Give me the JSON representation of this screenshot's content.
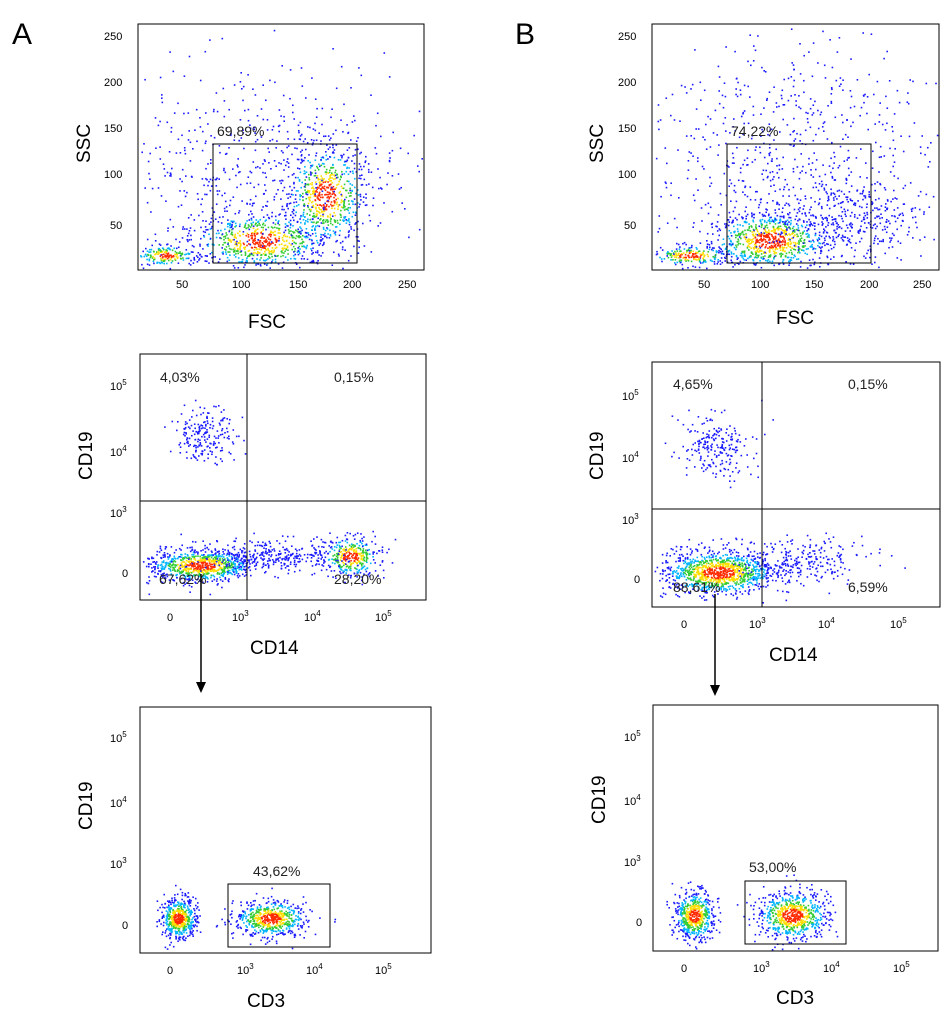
{
  "panels": [
    {
      "letter": "A",
      "plots": [
        {
          "kind": "scatter-density",
          "xscale": "linear",
          "yscale": "linear",
          "xlabel": "FSC",
          "ylabel": "SSC",
          "xlim": [
            0,
            262
          ],
          "ylim": [
            0,
            262
          ],
          "xticks": [
            "50",
            "100",
            "150",
            "200",
            "250"
          ],
          "yticks": [
            "50",
            "100",
            "150",
            "200",
            "250"
          ],
          "gates": [
            {
              "type": "rect",
              "x": [
                68,
                200
              ],
              "y": [
                10,
                135
              ],
              "label": "69,89%"
            }
          ]
        },
        {
          "kind": "scatter-density",
          "xscale": "biexponential",
          "yscale": "biexponential",
          "xlabel": "CD14",
          "ylabel": "CD19",
          "xticks": [
            "0",
            "10^3",
            "10^4",
            "10^5"
          ],
          "yticks": [
            "0",
            "10^3",
            "10^4",
            "10^5"
          ],
          "quadrant_lines": {
            "x": "10^3",
            "y": "10^3"
          },
          "quadrants": {
            "upper_left": "4,03%",
            "upper_right": "0,15%",
            "lower_left": "67,62%",
            "lower_right": "28,20%"
          },
          "arrow_from": "lower_left"
        },
        {
          "kind": "scatter-density",
          "xscale": "biexponential",
          "yscale": "biexponential",
          "xlabel": "CD3",
          "ylabel": "CD19",
          "xticks": [
            "0",
            "10^3",
            "10^4",
            "10^5"
          ],
          "yticks": [
            "0",
            "10^3",
            "10^4",
            "10^5"
          ],
          "gates": [
            {
              "type": "rect",
              "label": "43,62%"
            }
          ]
        }
      ]
    },
    {
      "letter": "B",
      "plots": [
        {
          "kind": "scatter-density",
          "xscale": "linear",
          "yscale": "linear",
          "xlabel": "FSC",
          "ylabel": "SSC",
          "xlim": [
            0,
            262
          ],
          "ylim": [
            0,
            262
          ],
          "xticks": [
            "50",
            "100",
            "150",
            "200",
            "250"
          ],
          "yticks": [
            "50",
            "100",
            "150",
            "200",
            "250"
          ],
          "gates": [
            {
              "type": "rect",
              "x": [
                68,
                200
              ],
              "y": [
                10,
                135
              ],
              "label": "74,22%"
            }
          ]
        },
        {
          "kind": "scatter-density",
          "xscale": "biexponential",
          "yscale": "biexponential",
          "xlabel": "CD14",
          "ylabel": "CD19",
          "xticks": [
            "0",
            "10^3",
            "10^4",
            "10^5"
          ],
          "yticks": [
            "0",
            "10^3",
            "10^4",
            "10^5"
          ],
          "quadrant_lines": {
            "x": "10^3",
            "y": "10^3"
          },
          "quadrants": {
            "upper_left": "4,65%",
            "upper_right": "0,15%",
            "lower_left": "88,61%",
            "lower_right": "6,59%"
          },
          "arrow_from": "lower_left"
        },
        {
          "kind": "scatter-density",
          "xscale": "biexponential",
          "yscale": "biexponential",
          "xlabel": "CD3",
          "ylabel": "CD19",
          "xticks": [
            "0",
            "10^3",
            "10^4",
            "10^5"
          ],
          "yticks": [
            "0",
            "10^3",
            "10^4",
            "10^5"
          ],
          "gates": [
            {
              "type": "rect",
              "label": "53,00%"
            }
          ]
        }
      ]
    }
  ],
  "chart_data": [
    {
      "type": "scatter",
      "panel": "A",
      "xlabel": "FSC",
      "ylabel": "SSC",
      "xlim": [
        0,
        262
      ],
      "ylim": [
        0,
        262
      ],
      "gate": {
        "x": [
          68,
          200
        ],
        "y": [
          10,
          135
        ],
        "percent": 69.89
      },
      "populations": [
        {
          "x": 113,
          "y": 25
        },
        {
          "x": 165,
          "y": 75
        },
        {
          "x": 22,
          "y": 12
        }
      ]
    },
    {
      "type": "scatter",
      "panel": "A",
      "xlabel": "CD14",
      "ylabel": "CD19",
      "quadrants": {
        "upper_left": 4.03,
        "upper_right": 0.15,
        "lower_left": 67.62,
        "lower_right": 28.2
      }
    },
    {
      "type": "scatter",
      "panel": "A",
      "xlabel": "CD3",
      "ylabel": "CD19",
      "gate": {
        "percent": 43.62
      }
    },
    {
      "type": "scatter",
      "panel": "B",
      "xlabel": "FSC",
      "ylabel": "SSC",
      "xlim": [
        0,
        262
      ],
      "ylim": [
        0,
        262
      ],
      "gate": {
        "x": [
          68,
          200
        ],
        "y": [
          10,
          135
        ],
        "percent": 74.22
      },
      "populations": [
        {
          "x": 105,
          "y": 25
        },
        {
          "x": 22,
          "y": 12
        }
      ]
    },
    {
      "type": "scatter",
      "panel": "B",
      "xlabel": "CD14",
      "ylabel": "CD19",
      "quadrants": {
        "upper_left": 4.65,
        "upper_right": 0.15,
        "lower_left": 88.61,
        "lower_right": 6.59
      }
    },
    {
      "type": "scatter",
      "panel": "B",
      "xlabel": "CD3",
      "ylabel": "CD19",
      "gate": {
        "percent": 53.0
      }
    }
  ],
  "colors": {
    "sparse": "#1a1aff",
    "density_low": "#00b4ff",
    "density_mid": "#33cc33",
    "density_high": "#ffdd00",
    "density_peak": "#ff2a00"
  }
}
